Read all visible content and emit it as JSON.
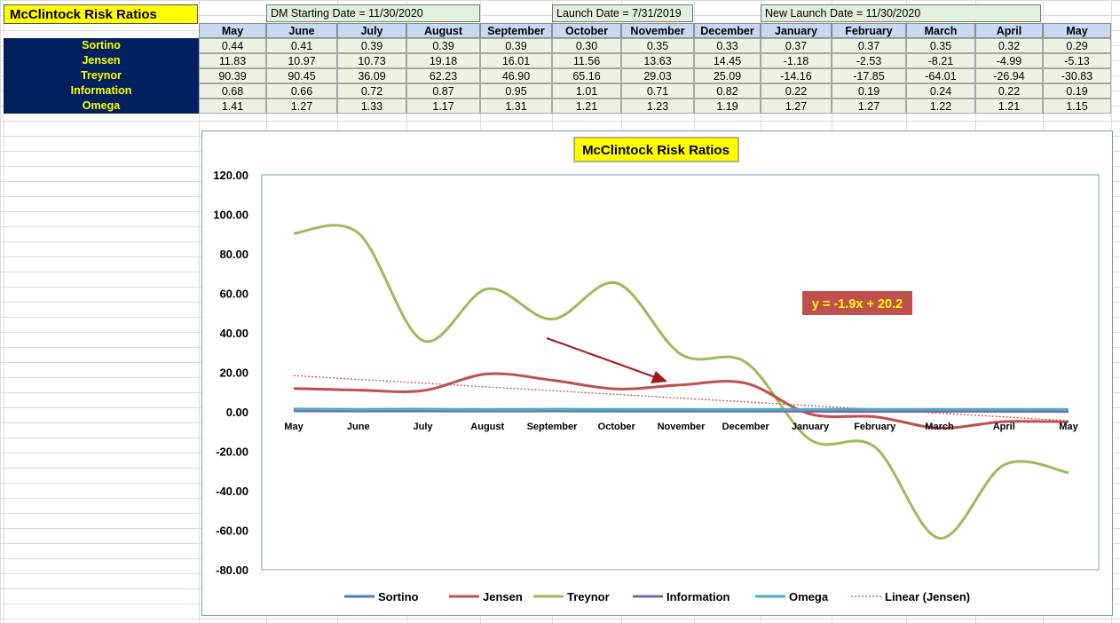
{
  "sheet": {
    "title": "McClintock Risk Ratios",
    "dates": [
      "DM Starting Date = 11/30/2020",
      "Launch Date = 7/31/2019",
      "New Launch Date = 11/30/2020"
    ],
    "months": [
      "May",
      "June",
      "July",
      "August",
      "September",
      "October",
      "November",
      "December",
      "January",
      "February",
      "March",
      "April",
      "May"
    ],
    "rows": [
      {
        "label": "Sortino",
        "values": [
          "0.44",
          "0.41",
          "0.39",
          "0.39",
          "0.39",
          "0.30",
          "0.35",
          "0.33",
          "0.37",
          "0.37",
          "0.35",
          "0.32",
          "0.29"
        ]
      },
      {
        "label": "Jensen",
        "values": [
          "11.83",
          "10.97",
          "10.73",
          "19.18",
          "16.01",
          "11.56",
          "13.63",
          "14.45",
          "-1.18",
          "-2.53",
          "-8.21",
          "-4.99",
          "-5.13"
        ]
      },
      {
        "label": "Treynor",
        "values": [
          "90.39",
          "90.45",
          "36.09",
          "62.23",
          "46.90",
          "65.16",
          "29.03",
          "25.09",
          "-14.16",
          "-17.85",
          "-64.01",
          "-26.94",
          "-30.83"
        ]
      },
      {
        "label": "Information",
        "values": [
          "0.68",
          "0.66",
          "0.72",
          "0.87",
          "0.95",
          "1.01",
          "0.71",
          "0.82",
          "0.22",
          "0.19",
          "0.24",
          "0.22",
          "0.19"
        ]
      },
      {
        "label": "Omega",
        "values": [
          "1.41",
          "1.27",
          "1.33",
          "1.17",
          "1.31",
          "1.21",
          "1.23",
          "1.19",
          "1.27",
          "1.27",
          "1.22",
          "1.21",
          "1.15"
        ]
      }
    ]
  },
  "chart_data": {
    "type": "line",
    "title": "McClintock Risk Ratios",
    "categories": [
      "May",
      "June",
      "July",
      "August",
      "September",
      "October",
      "November",
      "December",
      "January",
      "February",
      "March",
      "April",
      "May"
    ],
    "ylim": [
      -80,
      120
    ],
    "yticks": [
      "120.00",
      "100.00",
      "80.00",
      "60.00",
      "40.00",
      "20.00",
      "0.00",
      "-20.00",
      "-40.00",
      "-60.00",
      "-80.00"
    ],
    "series": [
      {
        "name": "Sortino",
        "color": "#4a7ebb",
        "values": [
          0.44,
          0.41,
          0.39,
          0.39,
          0.39,
          0.3,
          0.35,
          0.33,
          0.37,
          0.37,
          0.35,
          0.32,
          0.29
        ]
      },
      {
        "name": "Jensen",
        "color": "#c0504d",
        "values": [
          11.83,
          10.97,
          10.73,
          19.18,
          16.01,
          11.56,
          13.63,
          14.45,
          -1.18,
          -2.53,
          -8.21,
          -4.99,
          -5.13
        ]
      },
      {
        "name": "Treynor",
        "color": "#9bbb59",
        "values": [
          90.39,
          90.45,
          36.09,
          62.23,
          46.9,
          65.16,
          29.03,
          25.09,
          -14.16,
          -17.85,
          -64.01,
          -26.94,
          -30.83
        ]
      },
      {
        "name": "Information",
        "color": "#8064a2",
        "values": [
          0.68,
          0.66,
          0.72,
          0.87,
          0.95,
          1.01,
          0.71,
          0.82,
          0.22,
          0.19,
          0.24,
          0.22,
          0.19
        ]
      },
      {
        "name": "Omega",
        "color": "#4bacc6",
        "values": [
          1.41,
          1.27,
          1.33,
          1.17,
          1.31,
          1.21,
          1.23,
          1.19,
          1.27,
          1.27,
          1.22,
          1.21,
          1.15
        ]
      }
    ],
    "trendline": {
      "name": "Linear (Jensen)",
      "color": "#c0504d",
      "slope": -1.9,
      "intercept": 20.2
    },
    "annotation": "y = -1.9x + 20.2",
    "legend": "bottom",
    "grid": false
  }
}
